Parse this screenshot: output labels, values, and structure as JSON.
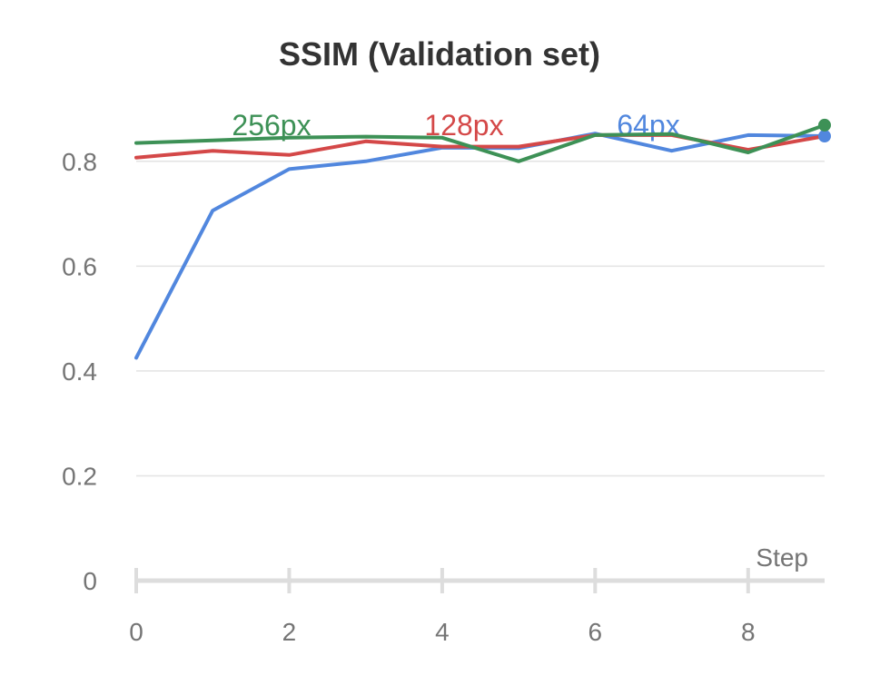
{
  "chart_data": {
    "type": "line",
    "title": "SSIM (Validation set)",
    "xlabel": "Step",
    "ylabel": "",
    "xlim": [
      0,
      9
    ],
    "ylim": [
      0,
      0.9
    ],
    "x": [
      0,
      1,
      2,
      3,
      4,
      5,
      6,
      7,
      8,
      9
    ],
    "x_ticks": [
      0,
      2,
      4,
      6,
      8
    ],
    "y_ticks": [
      0,
      0.2,
      0.4,
      0.6,
      0.8
    ],
    "x_tick_labels": [
      "0",
      "2",
      "4",
      "6",
      "8"
    ],
    "y_tick_labels": [
      "0",
      "0.2",
      "0.4",
      "0.6",
      "0.8"
    ],
    "grid": true,
    "legend_position": "top",
    "series": [
      {
        "name": "256px",
        "color": "#3d9156",
        "values": [
          0.835,
          0.84,
          0.845,
          0.847,
          0.845,
          0.8,
          0.85,
          0.852,
          0.817,
          0.869
        ]
      },
      {
        "name": "128px",
        "color": "#d44848",
        "values": [
          0.807,
          0.82,
          0.812,
          0.838,
          0.828,
          0.828,
          0.85,
          0.85,
          0.822,
          0.848
        ]
      },
      {
        "name": "64px",
        "color": "#5187de",
        "values": [
          0.425,
          0.706,
          0.785,
          0.8,
          0.826,
          0.825,
          0.853,
          0.82,
          0.85,
          0.848
        ]
      }
    ]
  }
}
